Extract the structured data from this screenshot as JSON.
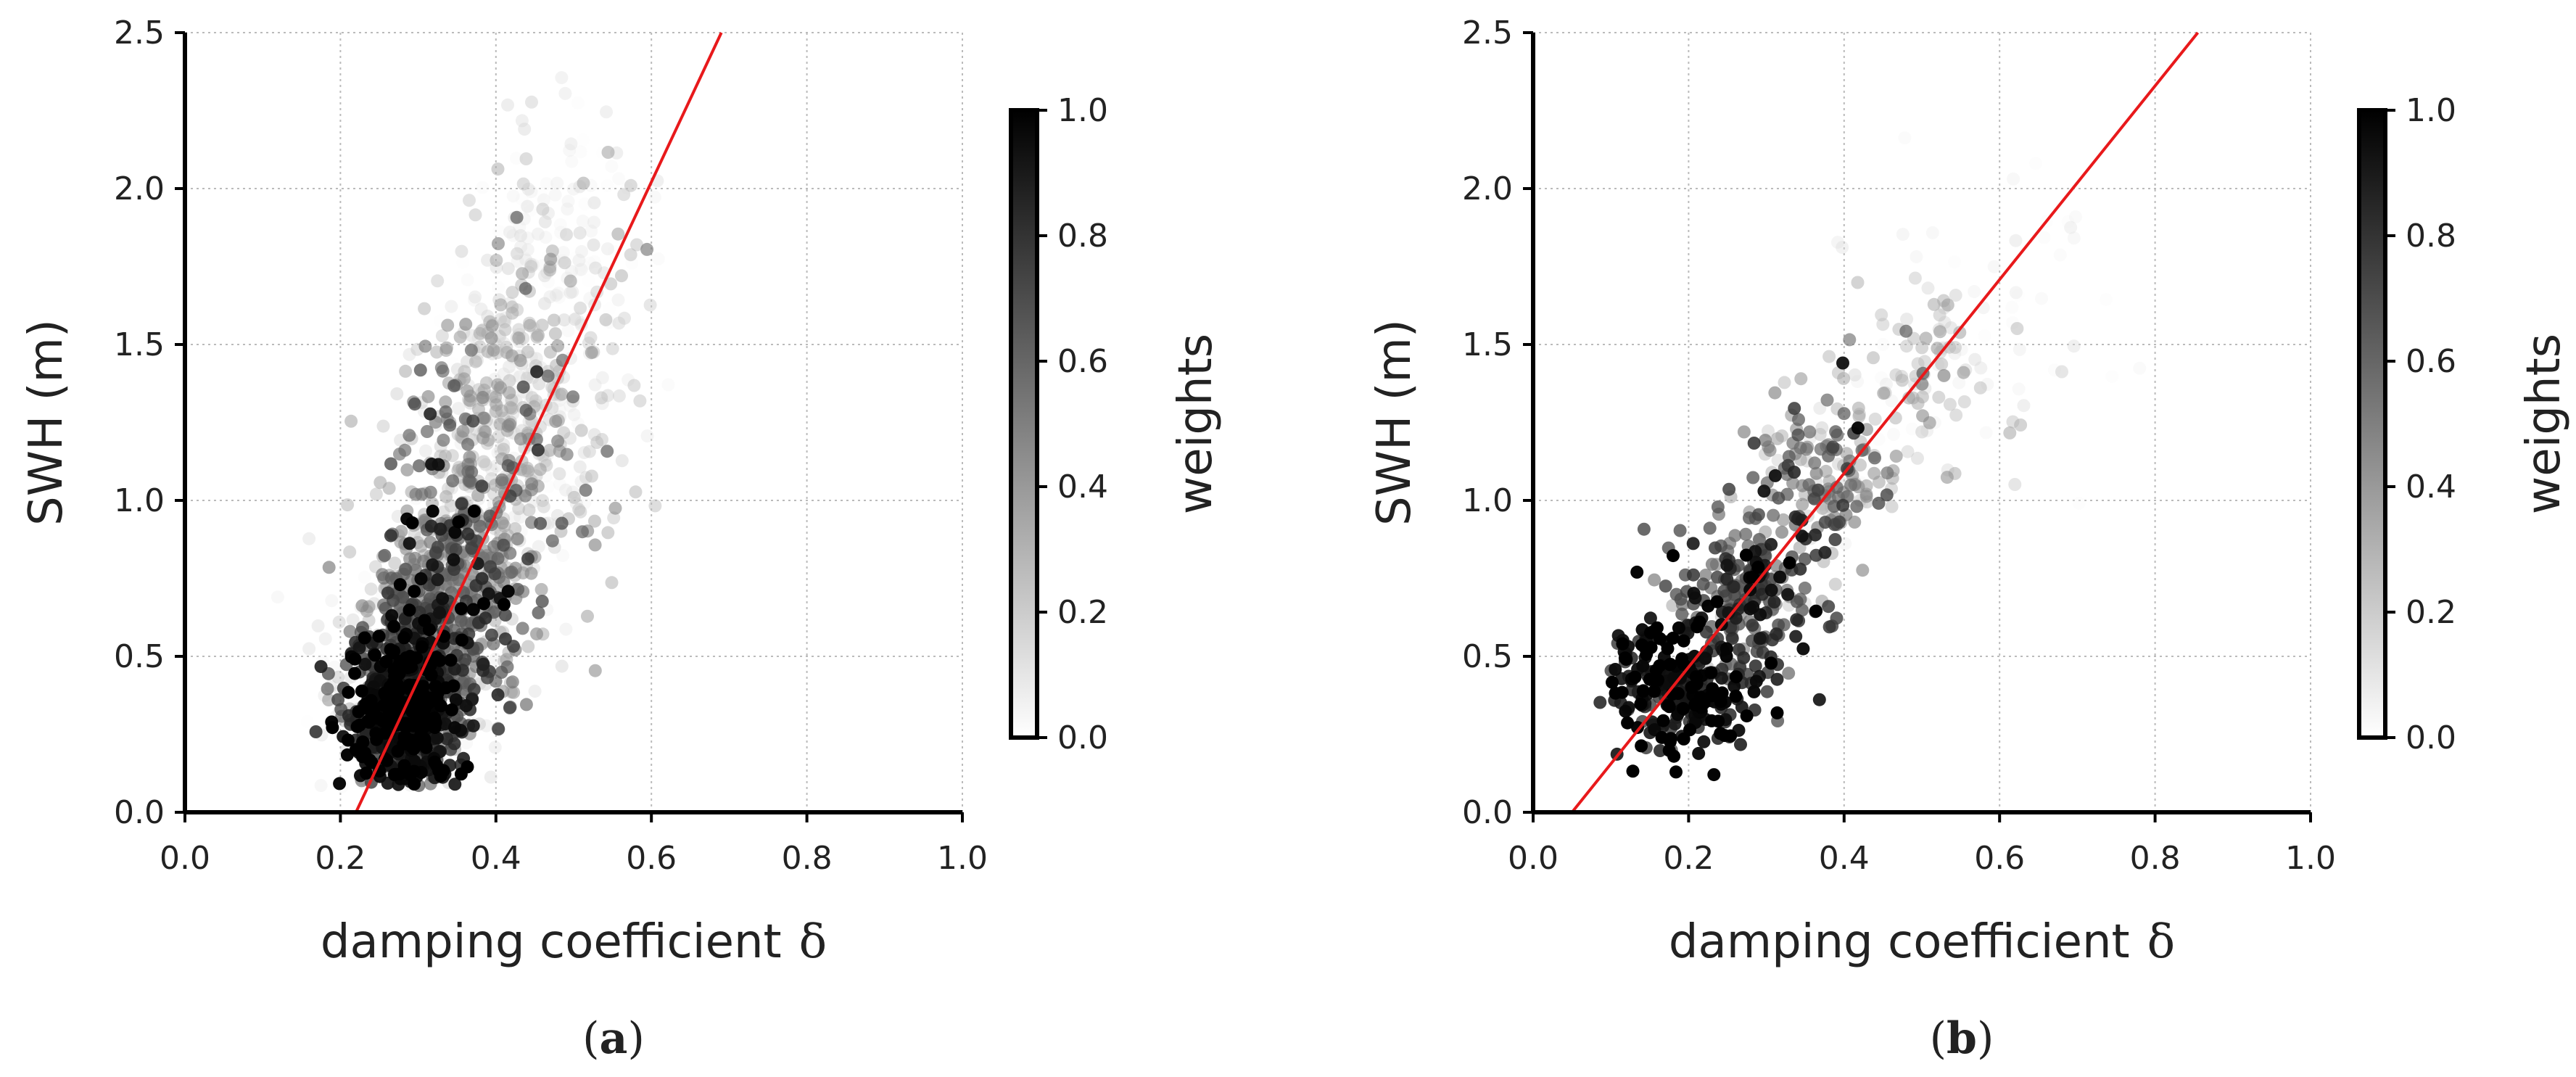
{
  "chart_data": [
    {
      "type": "scatter",
      "panel_label": "a",
      "xlabel": "damping coefficient",
      "xlabel_symbol": "δ",
      "ylabel": "SWH (m)",
      "xlim": [
        0.0,
        1.0
      ],
      "ylim": [
        0.0,
        2.5
      ],
      "xticks": [
        "0.0",
        "0.2",
        "0.4",
        "0.6",
        "0.8",
        "1.0"
      ],
      "yticks": [
        "0.0",
        "0.5",
        "1.0",
        "1.5",
        "2.0",
        "2.5"
      ],
      "grid": true,
      "colorbar": {
        "label": "weights",
        "range": [
          0.0,
          1.0
        ],
        "ticks": [
          "0.0",
          "0.2",
          "0.4",
          "0.6",
          "0.8",
          "1.0"
        ],
        "colormap": "white-to-black"
      },
      "fit_line": {
        "color": "#e8191b",
        "points": [
          [
            0.22,
            0.0
          ],
          [
            0.69,
            2.5
          ]
        ]
      },
      "clusters": [
        {
          "cx": 0.28,
          "cy": 0.32,
          "sx": 0.035,
          "sy": 0.14,
          "n": 700,
          "w": 0.88,
          "wsd": 0.18
        },
        {
          "cx": 0.33,
          "cy": 0.65,
          "sx": 0.045,
          "sy": 0.2,
          "n": 550,
          "w": 0.55,
          "wsd": 0.22
        },
        {
          "cx": 0.39,
          "cy": 1.05,
          "sx": 0.055,
          "sy": 0.28,
          "n": 450,
          "w": 0.35,
          "wsd": 0.2
        },
        {
          "cx": 0.46,
          "cy": 1.5,
          "sx": 0.06,
          "sy": 0.3,
          "n": 300,
          "w": 0.18,
          "wsd": 0.12
        },
        {
          "cx": 0.26,
          "cy": 0.35,
          "sx": 0.05,
          "sy": 0.18,
          "n": 250,
          "w": 0.1,
          "wsd": 0.08
        },
        {
          "cx": 0.5,
          "cy": 1.9,
          "sx": 0.05,
          "sy": 0.18,
          "n": 80,
          "w": 0.08,
          "wsd": 0.06
        }
      ]
    },
    {
      "type": "scatter",
      "panel_label": "b",
      "xlabel": "damping coefficient",
      "xlabel_symbol": "δ",
      "ylabel": "SWH (m)",
      "xlim": [
        0.0,
        1.0
      ],
      "ylim": [
        0.0,
        2.5
      ],
      "xticks": [
        "0.0",
        "0.2",
        "0.4",
        "0.6",
        "0.8",
        "1.0"
      ],
      "yticks": [
        "0.0",
        "0.5",
        "1.0",
        "1.5",
        "2.0",
        "2.5"
      ],
      "grid": true,
      "colorbar": {
        "label": "weights",
        "range": [
          0.0,
          1.0
        ],
        "ticks": [
          "0.0",
          "0.2",
          "0.4",
          "0.6",
          "0.8",
          "1.0"
        ],
        "colormap": "white-to-black"
      },
      "fit_line": {
        "color": "#e8191b",
        "points": [
          [
            0.05,
            0.0
          ],
          [
            0.855,
            2.5
          ]
        ]
      },
      "clusters": [
        {
          "cx": 0.19,
          "cy": 0.4,
          "sx": 0.045,
          "sy": 0.11,
          "n": 260,
          "w": 0.93,
          "wsd": 0.1
        },
        {
          "cx": 0.27,
          "cy": 0.7,
          "sx": 0.045,
          "sy": 0.12,
          "n": 220,
          "w": 0.72,
          "wsd": 0.18
        },
        {
          "cx": 0.37,
          "cy": 1.05,
          "sx": 0.05,
          "sy": 0.14,
          "n": 160,
          "w": 0.5,
          "wsd": 0.2
        },
        {
          "cx": 0.5,
          "cy": 1.38,
          "sx": 0.06,
          "sy": 0.14,
          "n": 110,
          "w": 0.25,
          "wsd": 0.15
        },
        {
          "cx": 0.6,
          "cy": 1.65,
          "sx": 0.09,
          "sy": 0.3,
          "n": 45,
          "w": 0.08,
          "wsd": 0.06
        }
      ]
    }
  ]
}
